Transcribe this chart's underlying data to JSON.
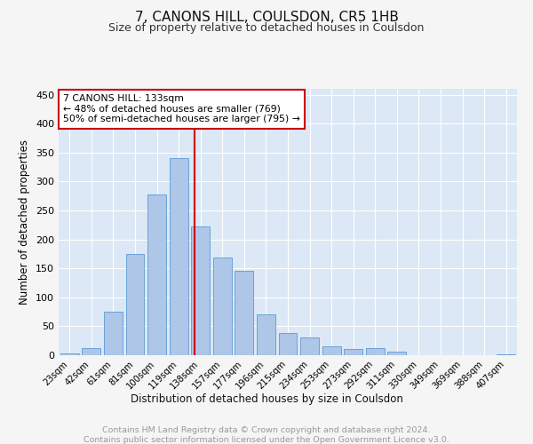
{
  "title": "7, CANONS HILL, COULSDON, CR5 1HB",
  "subtitle": "Size of property relative to detached houses in Coulsdon",
  "xlabel": "Distribution of detached houses by size in Coulsdon",
  "ylabel": "Number of detached properties",
  "footer_line1": "Contains HM Land Registry data © Crown copyright and database right 2024.",
  "footer_line2": "Contains public sector information licensed under the Open Government Licence v3.0.",
  "bar_labels": [
    "23sqm",
    "42sqm",
    "61sqm",
    "81sqm",
    "100sqm",
    "119sqm",
    "138sqm",
    "157sqm",
    "177sqm",
    "196sqm",
    "215sqm",
    "234sqm",
    "253sqm",
    "273sqm",
    "292sqm",
    "311sqm",
    "330sqm",
    "349sqm",
    "369sqm",
    "388sqm",
    "407sqm"
  ],
  "bar_values": [
    3,
    12,
    75,
    175,
    278,
    340,
    222,
    168,
    145,
    70,
    38,
    30,
    16,
    11,
    12,
    6,
    0,
    0,
    0,
    0,
    2
  ],
  "bar_color": "#aec6e8",
  "bar_edge_color": "#5b9bd5",
  "background_color": "#dce8f5",
  "grid_color": "#ffffff",
  "annotation_text": "7 CANONS HILL: 133sqm\n← 48% of detached houses are smaller (769)\n50% of semi-detached houses are larger (795) →",
  "vline_color": "#cc0000",
  "annotation_box_color": "#ffffff",
  "annotation_box_edge": "#cc0000",
  "ylim": [
    0,
    460
  ],
  "yticks": [
    0,
    50,
    100,
    150,
    200,
    250,
    300,
    350,
    400,
    450
  ],
  "fig_bg": "#f5f5f5"
}
